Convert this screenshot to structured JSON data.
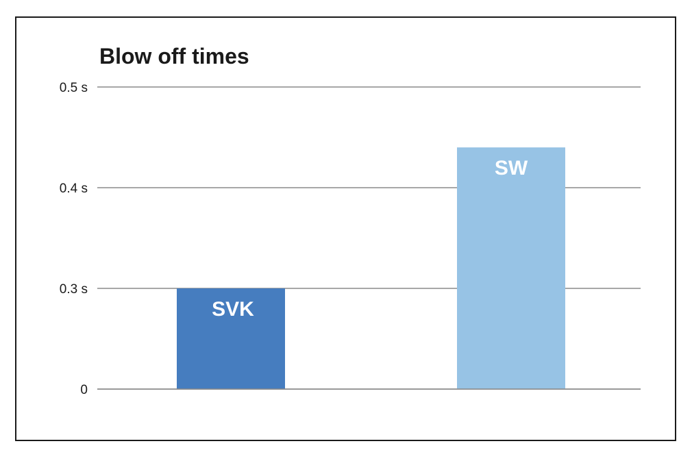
{
  "chart_data": {
    "type": "bar",
    "title": "Blow off times",
    "xlabel": "",
    "ylabel": "",
    "categories": [
      "SVK",
      "SW"
    ],
    "values": [
      0.3,
      0.44
    ],
    "colors": [
      "#467dbf",
      "#97c3e5"
    ],
    "yticks": [
      {
        "value": 0,
        "label": "0"
      },
      {
        "value": 0.3,
        "label": "0.3 s"
      },
      {
        "value": 0.4,
        "label": "0.4 s"
      },
      {
        "value": 0.5,
        "label": "0.5 s"
      }
    ],
    "y_axis_break": "between 0 and 0.3 s",
    "ylim": [
      0,
      0.5
    ],
    "grid": true,
    "legend": "none",
    "data_labels": "category name inside top of bar"
  }
}
